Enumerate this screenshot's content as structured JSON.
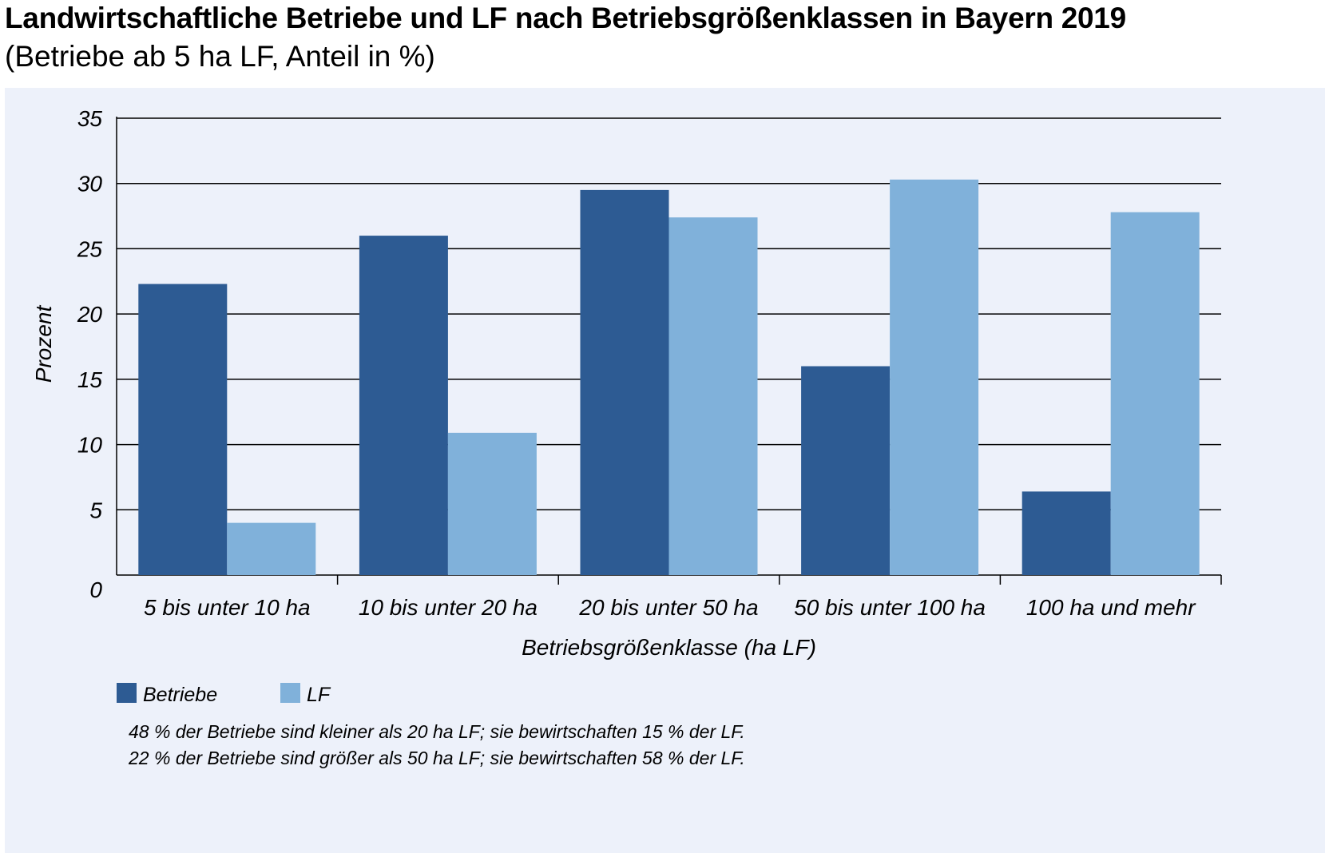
{
  "title": "Landwirtschaftliche Betriebe und LF nach Betriebsgrößenklassen in Bayern 2019",
  "subtitle": "(Betriebe ab 5 ha LF, Anteil in %)",
  "notes": [
    "48 % der Betriebe sind kleiner als 20 ha LF; sie bewirtschaften 15 % der LF.",
    "22 % der Betriebe sind größer als 50 ha LF; sie bewirtschaften 58 % der LF."
  ],
  "colors": {
    "betriebe": "#2d5b93",
    "lf": "#80b1da",
    "panel": "#edf1fa",
    "grid": "#000000"
  },
  "chart_data": {
    "type": "bar",
    "categories": [
      "5 bis unter 10 ha",
      "10 bis unter 20 ha",
      "20 bis unter 50 ha",
      "50 bis unter 100 ha",
      "100 ha und mehr"
    ],
    "series": [
      {
        "name": "Betriebe",
        "values": [
          22.3,
          26.0,
          29.5,
          16.0,
          6.4
        ]
      },
      {
        "name": "LF",
        "values": [
          4.0,
          10.9,
          27.4,
          30.3,
          27.8
        ]
      }
    ],
    "xlabel": "Betriebsgrößenklasse (ha LF)",
    "ylabel": "Prozent",
    "ylim": [
      0,
      35
    ],
    "yticks": [
      0,
      5,
      10,
      15,
      20,
      25,
      30,
      35
    ],
    "grid": true,
    "legend_position": "bottom-left"
  }
}
